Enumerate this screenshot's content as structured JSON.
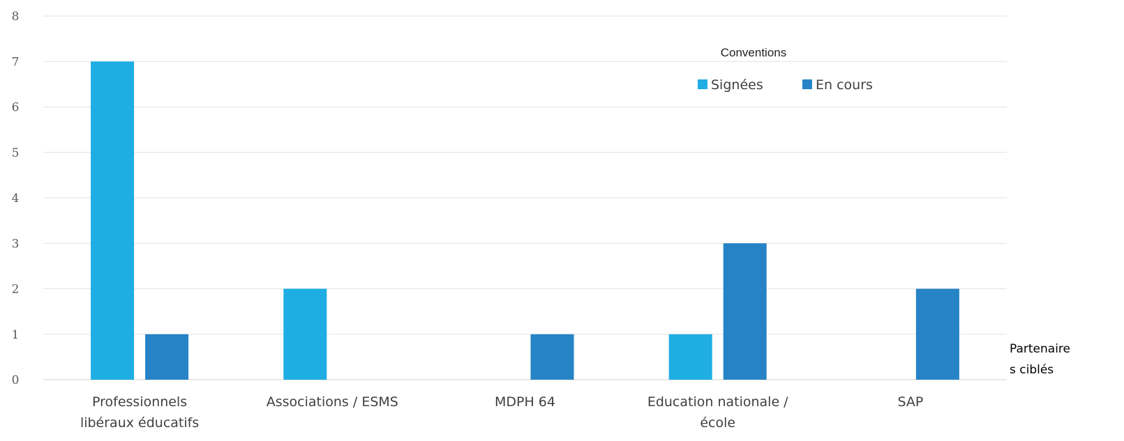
{
  "chart_data": {
    "type": "bar",
    "categories": [
      [
        "Professionnels",
        "libéraux éducatifs"
      ],
      [
        "Associations / ESMS"
      ],
      [
        "MDPH 64"
      ],
      [
        "Education nationale /",
        "école"
      ],
      [
        "SAP"
      ]
    ],
    "series": [
      {
        "name": "Signées",
        "color": "#1EAEE4",
        "values": [
          7,
          2,
          0,
          1,
          0
        ]
      },
      {
        "name": "En cours",
        "color": "#2683C6",
        "values": [
          1,
          0,
          1,
          3,
          2
        ]
      }
    ],
    "legend_title": "Conventions",
    "xlabel": [
      "Partenaire",
      "s ciblés"
    ],
    "ylim": [
      0,
      8
    ],
    "yticks": [
      "0",
      "1",
      "2",
      "3",
      "4",
      "5",
      "6",
      "7",
      "8"
    ],
    "grid": true,
    "legend_position": "top-right"
  }
}
